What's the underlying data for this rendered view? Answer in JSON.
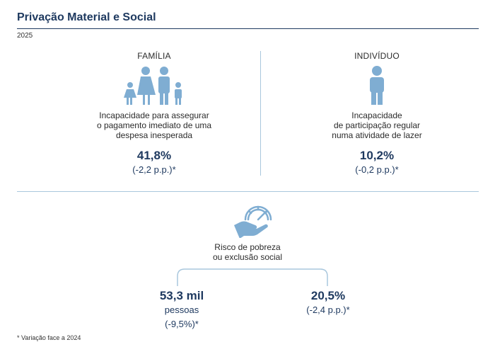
{
  "header": {
    "title": "Privação Material e Social",
    "year": "2025"
  },
  "familia": {
    "heading": "FAMÍLIA",
    "description": [
      "Incapacidade para assegurar",
      "o pagamento imediato de uma",
      "despesa inesperada"
    ],
    "value": "41,8%",
    "change": "(-2,2 p.p.)*",
    "icon": "family-icon"
  },
  "individuo": {
    "heading": "INDIVÍDUO",
    "description": [
      "Incapacidade",
      "de participação regular",
      "numa atividade de lazer"
    ],
    "value": "10,2%",
    "change": "(-0,2 p.p.)*",
    "icon": "person-icon"
  },
  "risco": {
    "label": [
      "Risco de pobreza",
      "ou exclusão social"
    ],
    "icon": "hand-gauge-icon",
    "left": {
      "value": "53,3 mil",
      "unit": "pessoas",
      "change": "(-9,5%)*"
    },
    "right": {
      "value": "20,5%",
      "change": "(-2,4 p.p.)*"
    }
  },
  "footnote": "* Variação face a 2024",
  "colors": {
    "primary": "#1f3a60",
    "icon": "#7fadd2",
    "divider": "#a9c7dd"
  }
}
